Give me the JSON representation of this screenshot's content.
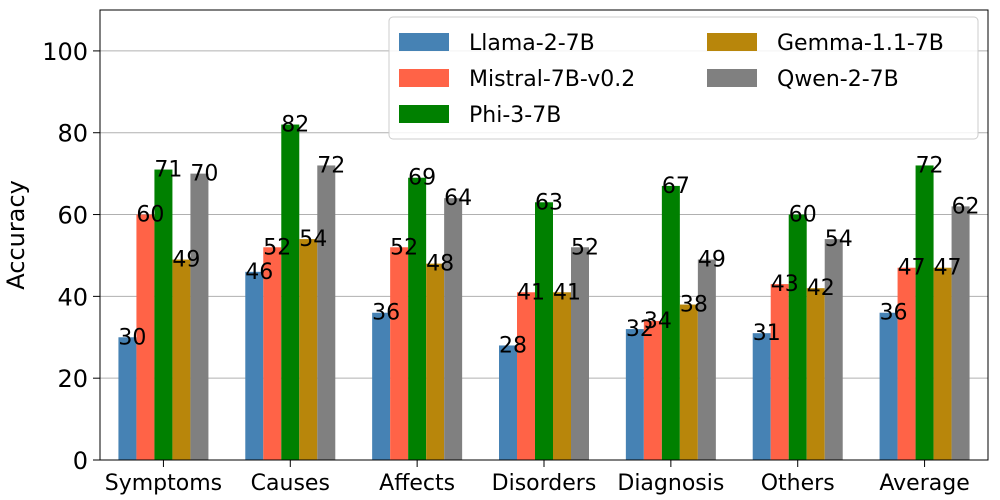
{
  "chart_data": {
    "type": "bar",
    "ylabel": "Accuracy",
    "xlabel": "",
    "ylim": [
      0,
      110
    ],
    "yticks": [
      0,
      20,
      40,
      60,
      80,
      100
    ],
    "grid": "y",
    "legend_position": "top-right",
    "legend_columns": 2,
    "categories": [
      "Symptoms",
      "Causes",
      "Affects",
      "Disorders",
      "Diagnosis",
      "Others",
      "Average"
    ],
    "series": [
      {
        "name": "Llama-2-7B",
        "color": "#4682b4",
        "values": [
          30,
          46,
          36,
          28,
          32,
          31,
          36
        ],
        "value_labels": [
          "30",
          "46",
          "36",
          "28",
          "32",
          "31",
          "36"
        ]
      },
      {
        "name": "Mistral-7B-v0.2",
        "color": "#ff6347",
        "values": [
          60,
          52,
          52,
          41,
          34,
          43,
          47
        ],
        "value_labels": [
          "60",
          "52",
          "52",
          "41",
          "34",
          "43",
          "47"
        ]
      },
      {
        "name": "Phi-3-7B",
        "color": "#008000",
        "values": [
          71,
          82,
          69,
          63,
          67,
          60,
          72
        ],
        "value_labels": [
          "71",
          "82",
          "69",
          "63",
          "67",
          "60",
          "72"
        ]
      },
      {
        "name": "Gemma-1.1-7B",
        "color": "#b8860b",
        "values": [
          49,
          54,
          48,
          41,
          38,
          42,
          47
        ],
        "value_labels": [
          "49",
          "54",
          "48",
          "41",
          "38",
          "42",
          "47"
        ]
      },
      {
        "name": "Qwen-2-7B",
        "color": "#808080",
        "values": [
          70,
          72,
          64,
          52,
          49,
          54,
          62
        ],
        "value_labels": [
          "70",
          "72",
          "64",
          "52",
          "49",
          "54",
          "62"
        ]
      }
    ]
  }
}
